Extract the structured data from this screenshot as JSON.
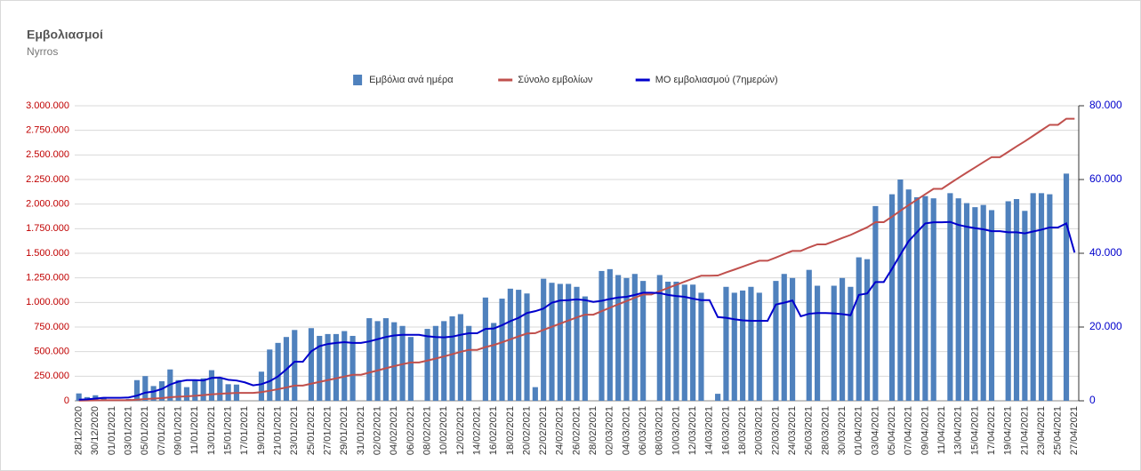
{
  "chart_data": {
    "type": "combo",
    "title": "Εμβολιασμοί",
    "subtitle": "Nyrros",
    "categories": [
      "28/12/2020",
      null,
      "30/12/2020",
      null,
      "01/01/2021",
      null,
      "03/01/2021",
      null,
      "05/01/2021",
      null,
      "07/01/2021",
      null,
      "09/01/2021",
      null,
      "11/01/2021",
      null,
      "13/01/2021",
      null,
      "15/01/2021",
      null,
      "17/01/2021",
      null,
      "19/01/2021",
      null,
      "21/01/2021",
      null,
      "23/01/2021",
      null,
      "25/01/2021",
      null,
      "27/01/2021",
      null,
      "29/01/2021",
      null,
      "31/01/2021",
      null,
      "02/02/2021",
      null,
      "04/02/2021",
      null,
      "06/02/2021",
      null,
      "08/02/2021",
      null,
      "10/02/2021",
      null,
      "12/02/2021",
      null,
      "14/02/2021",
      null,
      "16/02/2021",
      null,
      "18/02/2021",
      null,
      "20/02/2021",
      null,
      "22/02/2021",
      null,
      "24/02/2021",
      null,
      "26/02/2021",
      null,
      "28/02/2021",
      null,
      "02/03/2021",
      null,
      "04/03/2021",
      null,
      "06/03/2021",
      null,
      "08/03/2021",
      null,
      "10/03/2021",
      null,
      "12/03/2021",
      null,
      "14/03/2021",
      null,
      "16/03/2021",
      null,
      "18/03/2021",
      null,
      "20/03/2021",
      null,
      "22/03/2021",
      null,
      "24/03/2021",
      null,
      "26/03/2021",
      null,
      "28/03/2021",
      null,
      "30/03/2021",
      null,
      "01/04/2021",
      null,
      "03/04/2021",
      null,
      "05/04/2021",
      null,
      "07/04/2021",
      null,
      "09/04/2021",
      null,
      "11/04/2021",
      null,
      "13/04/2021",
      null,
      "15/04/2021",
      null,
      "17/04/2021",
      null,
      "19/04/2021",
      null,
      "21/04/2021",
      null,
      "23/04/2021",
      null,
      "25/04/2021",
      null,
      "27/04/2021"
    ],
    "series": [
      {
        "name": "Εμβόλια ανά ημέρα",
        "type": "bar",
        "axis": "y2",
        "color": "#4f81bd",
        "values": [
          2000,
          1000,
          1500,
          1000,
          0,
          0,
          500,
          5600,
          6700,
          4000,
          5300,
          8500,
          5600,
          3700,
          5600,
          6100,
          8300,
          6100,
          4500,
          4400,
          0,
          0,
          7900,
          13900,
          15700,
          17300,
          19200,
          0,
          19700,
          17600,
          18100,
          18100,
          18900,
          17600,
          0,
          22400,
          21600,
          22400,
          21300,
          20300,
          17300,
          0,
          19500,
          20300,
          21600,
          22900,
          23500,
          20300,
          0,
          28000,
          21100,
          27700,
          30400,
          30100,
          29100,
          3700,
          33100,
          32000,
          31700,
          31700,
          30900,
          28300,
          0,
          35200,
          35700,
          34100,
          33300,
          34400,
          32500,
          0,
          34100,
          32300,
          32300,
          31500,
          31500,
          29300,
          0,
          1900,
          30900,
          29300,
          29900,
          30900,
          29300,
          0,
          32500,
          34400,
          33300,
          0,
          35500,
          31200,
          0,
          31200,
          33300,
          30900,
          38900,
          38400,
          52800,
          0,
          56000,
          60000,
          57300,
          55200,
          55500,
          54900,
          0,
          56300,
          54900,
          53600,
          52500,
          53100,
          51700,
          0,
          54100,
          54700,
          51500,
          56300,
          56300,
          56000,
          0,
          61600,
          0
        ]
      },
      {
        "name": "Σύνολο εμβολίων",
        "type": "line",
        "axis": "y",
        "color": "#c0504d",
        "values": [
          2000,
          3000,
          4500,
          5500,
          5500,
          5500,
          6000,
          11600,
          18300,
          22300,
          27600,
          36100,
          41700,
          45400,
          51000,
          57100,
          65400,
          71500,
          76000,
          80400,
          80400,
          80400,
          88300,
          102200,
          117900,
          135200,
          154400,
          154400,
          174100,
          191700,
          209800,
          227900,
          246800,
          264400,
          264400,
          286800,
          308400,
          330800,
          352100,
          372400,
          389700,
          389700,
          409200,
          429500,
          451100,
          474000,
          497500,
          517800,
          517800,
          545800,
          566900,
          594600,
          625000,
          655100,
          684200,
          687900,
          721000,
          753000,
          784700,
          816400,
          847300,
          875600,
          875600,
          910800,
          946500,
          980600,
          1013900,
          1048300,
          1080800,
          1080800,
          1114900,
          1147200,
          1179500,
          1211000,
          1242500,
          1271800,
          1271800,
          1273700,
          1304600,
          1333900,
          1363800,
          1394700,
          1424000,
          1424000,
          1456500,
          1490900,
          1524200,
          1524200,
          1559700,
          1590900,
          1590900,
          1622100,
          1655400,
          1686300,
          1725200,
          1763600,
          1816400,
          1816400,
          1872400,
          1932400,
          1989700,
          2044900,
          2100400,
          2155300,
          2155300,
          2211600,
          2266500,
          2320100,
          2372600,
          2425700,
          2477400,
          2477400,
          2531500,
          2586200,
          2637700,
          2694000,
          2750300,
          2806300,
          2806300,
          2867900,
          2867900
        ]
      },
      {
        "name": "ΜΟ εμβολιασμού (7ημερών)",
        "type": "line",
        "axis": "y2",
        "color": "#0000cc",
        "values": [
          300,
          400,
          600,
          800,
          800,
          800,
          900,
          1400,
          2200,
          2500,
          3200,
          4400,
          5200,
          5600,
          5600,
          5500,
          6200,
          6300,
          5700,
          5500,
          5000,
          4200,
          4500,
          5300,
          6600,
          8500,
          10600,
          10600,
          13400,
          14800,
          15400,
          15700,
          15900,
          15700,
          15700,
          16100,
          16700,
          17300,
          17700,
          17900,
          17900,
          17900,
          17500,
          17300,
          17200,
          17400,
          17900,
          18300,
          18300,
          19500,
          19600,
          20500,
          21600,
          22500,
          23800,
          24300,
          25000,
          26600,
          27200,
          27300,
          27500,
          27300,
          26800,
          27100,
          27600,
          28000,
          28200,
          28700,
          29300,
          29300,
          29200,
          28700,
          28400,
          28200,
          27700,
          27300,
          27300,
          22700,
          22500,
          22100,
          21800,
          21700,
          21700,
          21700,
          26100,
          26600,
          27200,
          22900,
          23600,
          23800,
          23800,
          23700,
          23500,
          23200,
          28700,
          29100,
          32200,
          32200,
          35800,
          39600,
          43300,
          45700,
          48100,
          48400,
          48400,
          48500,
          47700,
          47200,
          46800,
          46500,
          46000,
          46000,
          45700,
          45700,
          45400,
          45900,
          46400,
          47000,
          47000,
          48100,
          40200
        ]
      }
    ],
    "ylim": [
      0,
      3000000
    ],
    "yticks": [
      0,
      {
        "value": 250000,
        "label": "250.000"
      },
      {
        "value": 500000,
        "label": "500.000"
      },
      {
        "value": 750000,
        "label": "750.000"
      },
      {
        "value": 1000000,
        "label": "1.000.000"
      },
      {
        "value": 1250000,
        "label": "1.250.000"
      },
      {
        "value": 1500000,
        "label": "1.500.000"
      },
      {
        "value": 1750000,
        "label": "1.750.000"
      },
      {
        "value": 2000000,
        "label": "2.000.000"
      },
      {
        "value": 2250000,
        "label": "2.250.000"
      },
      {
        "value": 2500000,
        "label": "2.500.000"
      },
      {
        "value": 2750000,
        "label": "2.750.000"
      },
      {
        "value": 3000000,
        "label": "3.000.000"
      }
    ],
    "y2lim": [
      0,
      80000
    ],
    "y2ticks": [
      0,
      {
        "value": 20000,
        "label": "20.000"
      },
      {
        "value": 40000,
        "label": "40.000"
      },
      {
        "value": 60000,
        "label": "60.000"
      },
      {
        "value": 80000,
        "label": "80.000"
      }
    ],
    "grid": true,
    "legend": "top"
  }
}
